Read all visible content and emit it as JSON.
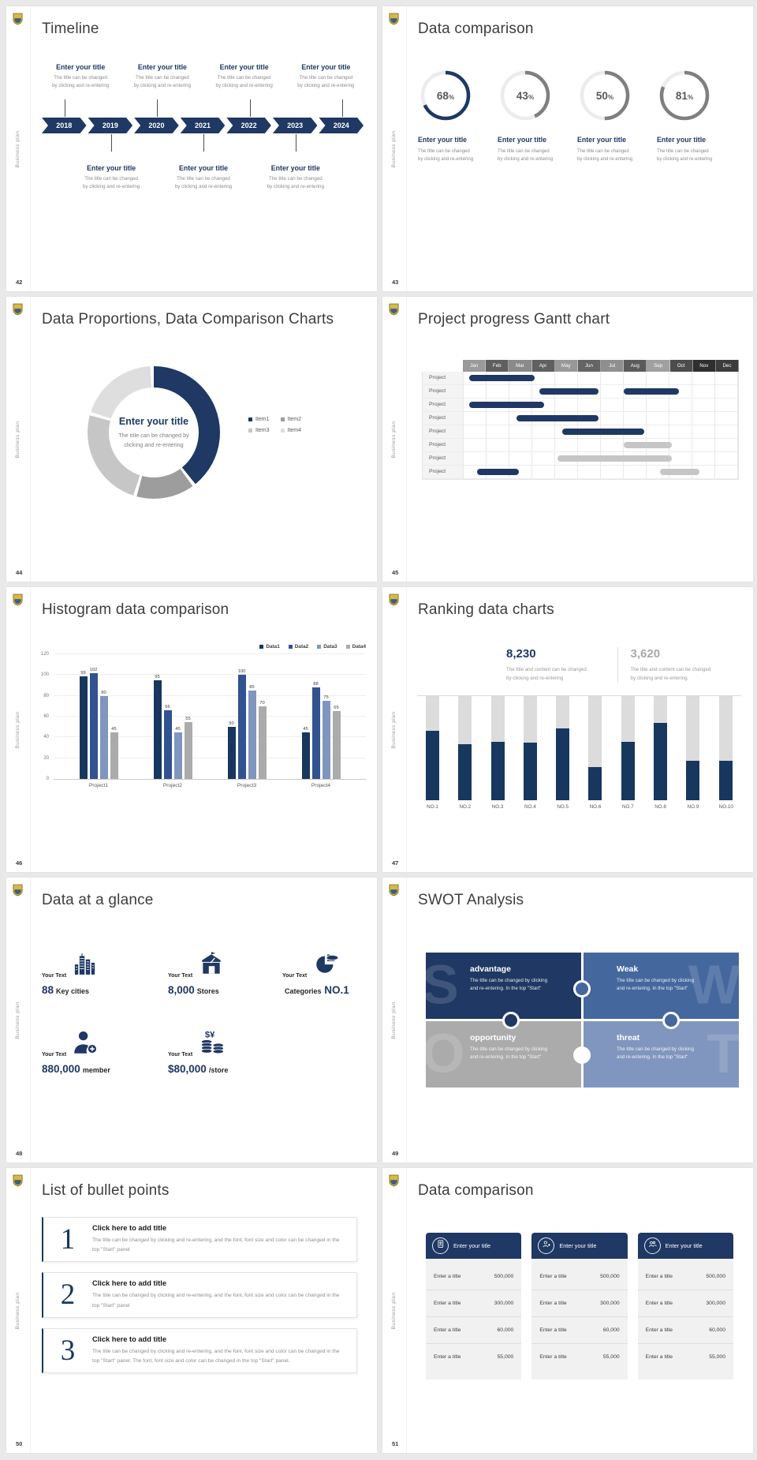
{
  "common": {
    "side_label": "Business plan",
    "accent": "#1f3864"
  },
  "s42": {
    "number": "42",
    "title": "Timeline",
    "years": [
      "2018",
      "2019",
      "2020",
      "2021",
      "2022",
      "2023",
      "2024"
    ],
    "top": [
      {
        "t": "Enter your title",
        "c1": "The title can be changed",
        "c2": "by clicking and re-entering"
      },
      {
        "t": "Enter your title",
        "c1": "The title can be changed",
        "c2": "by clicking and re-entering"
      },
      {
        "t": "Enter your title",
        "c1": "The title can be changed",
        "c2": "by clicking and re-entering"
      },
      {
        "t": "Enter your title",
        "c1": "The title can be changed",
        "c2": "by clicking and re-entering"
      }
    ],
    "bottom": [
      {
        "t": "Enter your title",
        "c1": "The title can be changed",
        "c2": "by clicking and re-entering"
      },
      {
        "t": "Enter your title",
        "c1": "The title can be changed",
        "c2": "by clicking and re-entering"
      },
      {
        "t": "Enter your title",
        "c1": "The title can be changed",
        "c2": "by clicking and re-entering"
      }
    ]
  },
  "s43": {
    "number": "43",
    "title": "Data comparison",
    "items": [
      {
        "pct": "68",
        "unit": "%",
        "color": "#1f3864",
        "t": "Enter your title",
        "c1": "The title can be changed",
        "c2": "by clicking and re-entering"
      },
      {
        "pct": "43",
        "unit": "%",
        "color": "#7f7f7f",
        "t": "Enter your title",
        "c1": "The title can be changed",
        "c2": "by clicking and re-entering"
      },
      {
        "pct": "50",
        "unit": "%",
        "color": "#7f7f7f",
        "t": "Enter your title",
        "c1": "The title can be changed",
        "c2": "by clicking and re-entering"
      },
      {
        "pct": "81",
        "unit": "%",
        "color": "#7f7f7f",
        "t": "Enter your title",
        "c1": "The title can be changed",
        "c2": "by clicking and re-entering"
      }
    ]
  },
  "s44": {
    "number": "44",
    "title": "Data Proportions, Data Comparison Charts",
    "center_title": "Enter your title",
    "center_c1": "The title can be changed by",
    "center_c2": "clicking and re-entering",
    "segments": [
      {
        "label": "Item1",
        "value": 40,
        "color": "#1f3864"
      },
      {
        "label": "Item2",
        "value": 15,
        "color": "#9d9d9d"
      },
      {
        "label": "Item3",
        "value": 25,
        "color": "#c6c6c6"
      },
      {
        "label": "Item4",
        "value": 20,
        "color": "#dedede"
      }
    ]
  },
  "s45": {
    "number": "45",
    "title": "Project progress Gantt chart",
    "row_label": "Project",
    "row_count": 8,
    "months": [
      {
        "label": "Jan",
        "color": "#9a9a9a"
      },
      {
        "label": "Feb",
        "color": "#5f5f5f"
      },
      {
        "label": "Mar",
        "color": "#8a8a8a"
      },
      {
        "label": "Apr",
        "color": "#606060"
      },
      {
        "label": "May",
        "color": "#989898"
      },
      {
        "label": "Jun",
        "color": "#646464"
      },
      {
        "label": "Jul",
        "color": "#8f8f8f"
      },
      {
        "label": "Aug",
        "color": "#5b5b5b"
      },
      {
        "label": "Sep",
        "color": "#a0a0a0"
      },
      {
        "label": "Oct",
        "color": "#4c4c4c"
      },
      {
        "label": "Nov",
        "color": "#2f2f2f"
      },
      {
        "label": "Dec",
        "color": "#3c3c3c"
      }
    ],
    "bar_colors": {
      "navy": "#1f3864",
      "gray": "#c6c6c6"
    },
    "bars": [
      {
        "row": 0,
        "start": 0.25,
        "end": 3.1,
        "color": "navy"
      },
      {
        "row": 1,
        "start": 3.3,
        "end": 5.9,
        "color": "navy"
      },
      {
        "row": 1,
        "start": 7.0,
        "end": 9.4,
        "color": "navy"
      },
      {
        "row": 2,
        "start": 0.25,
        "end": 3.5,
        "color": "navy"
      },
      {
        "row": 3,
        "start": 2.3,
        "end": 5.9,
        "color": "navy"
      },
      {
        "row": 4,
        "start": 4.3,
        "end": 7.9,
        "color": "navy"
      },
      {
        "row": 5,
        "start": 7.0,
        "end": 9.1,
        "color": "gray"
      },
      {
        "row": 6,
        "start": 4.1,
        "end": 9.1,
        "color": "gray"
      },
      {
        "row": 7,
        "start": 0.6,
        "end": 2.4,
        "color": "navy"
      },
      {
        "row": 7,
        "start": 8.6,
        "end": 10.3,
        "color": "gray"
      }
    ]
  },
  "s46": {
    "number": "46",
    "title": "Histogram data comparison",
    "legend": [
      "Data1",
      "Data2",
      "Data3",
      "Data4"
    ],
    "colors": [
      "#17375e",
      "#31538f",
      "#8096be",
      "#ababab"
    ],
    "ymax": 120,
    "yticks": [
      "0",
      "20",
      "40",
      "60",
      "80",
      "100",
      "120"
    ],
    "groups": [
      {
        "label": "Project1",
        "values": [
          99,
          102,
          80,
          45
        ]
      },
      {
        "label": "Project2",
        "values": [
          95,
          66,
          45,
          55
        ]
      },
      {
        "label": "Project3",
        "values": [
          50,
          100,
          85,
          70
        ]
      },
      {
        "label": "Project4",
        "values": [
          45,
          88,
          75,
          65
        ]
      }
    ]
  },
  "s47": {
    "number": "47",
    "title": "Ranking data charts",
    "left": {
      "value": "8,230",
      "c1": "The title and content can be changed",
      "c2": "by clicking and re-entering"
    },
    "right": {
      "value": "3,620",
      "c1": "The title and content can be changed",
      "c2": "by clicking and re-entering"
    },
    "bars": [
      {
        "label": "NO.1",
        "fill": 0.67
      },
      {
        "label": "NO.2",
        "fill": 0.54
      },
      {
        "label": "NO.3",
        "fill": 0.56
      },
      {
        "label": "NO.4",
        "fill": 0.55
      },
      {
        "label": "NO.5",
        "fill": 0.69
      },
      {
        "label": "NO.6",
        "fill": 0.32
      },
      {
        "label": "NO.7",
        "fill": 0.56
      },
      {
        "label": "NO.8",
        "fill": 0.74
      },
      {
        "label": "NO.9",
        "fill": 0.38
      },
      {
        "label": "NO.10",
        "fill": 0.38
      }
    ]
  },
  "s48": {
    "number": "48",
    "title": "Data at a glance",
    "items": [
      {
        "label": "Your Text",
        "icon": "city-icon",
        "big": "88",
        "small": "Key cities",
        "big_last": false
      },
      {
        "label": "Your Text",
        "icon": "store-icon",
        "big": "8,000",
        "small": "Stores",
        "big_last": false
      },
      {
        "label": "Your Text",
        "icon": "pie-icon",
        "big": "NO.1",
        "small": "Categories",
        "big_last": true
      },
      {
        "label": "Your Text",
        "icon": "member-icon",
        "big": "880,000",
        "small": "member",
        "big_last": false
      },
      {
        "label": "Your Text",
        "icon": "coins-icon",
        "big": "$80,000",
        "small": "/store",
        "big_last": false
      }
    ]
  },
  "s49": {
    "number": "49",
    "title": "SWOT Analysis",
    "pieces": [
      {
        "letter": "S",
        "title": "advantage",
        "c1": "The title can be changed by clicking",
        "c2": "and re-entering. In the top \"Start\"",
        "color": "#1f3864",
        "side": "left"
      },
      {
        "letter": "W",
        "title": "Weak",
        "c1": "The title can be changed by clicking",
        "c2": "and re-entering. In the top \"Start\"",
        "color": "#44679e",
        "side": "right"
      },
      {
        "letter": "O",
        "title": "opportunity",
        "c1": "The title can be changed by clicking",
        "c2": "and re-entering. In the top \"Start\"",
        "color": "#ababab",
        "side": "left"
      },
      {
        "letter": "T",
        "title": "threat",
        "c1": "The title can be changed by clicking",
        "c2": "and re-entering. In the top \"Start\"",
        "color": "#8096be",
        "side": "right"
      }
    ]
  },
  "s50": {
    "number": "50",
    "title": "List of bullet points",
    "items": [
      {
        "num": "1",
        "title": "Click here to add title",
        "body": "The title can be changed by clicking and re-entering, and the font, font size and color can be changed in the top \"Start\" panel"
      },
      {
        "num": "2",
        "title": "Click here to add title",
        "body": "The title can be changed by clicking and re-entering, and the font, font size and color can be changed in the top \"Start\" panel"
      },
      {
        "num": "3",
        "title": "Click here to add title",
        "body": "The title can be changed by clicking and re-entering, and the font, font size and color can be changed in the top \"Start\" panel. The font, font size and color can be changed in the top \"Start\" panel."
      }
    ]
  },
  "s51": {
    "number": "51",
    "title": "Data comparison",
    "cards": [
      {
        "title": "Enter your title",
        "icon": "id-card-icon"
      },
      {
        "title": "Enter your title",
        "icon": "person-add-icon"
      },
      {
        "title": "Enter your title",
        "icon": "group-icon"
      }
    ],
    "rows": [
      {
        "label": "Enter a title",
        "value": "500,000"
      },
      {
        "label": "Enter a title",
        "value": "300,000"
      },
      {
        "label": "Enter a title",
        "value": "60,000"
      },
      {
        "label": "Enter a title",
        "value": "55,000"
      }
    ]
  },
  "chart_data": [
    {
      "type": "pie",
      "subtype": "gauge-rings",
      "title": "Data comparison",
      "labels": [
        "ring1",
        "ring2",
        "ring3",
        "ring4"
      ],
      "values": [
        68,
        43,
        50,
        81
      ],
      "unit": "%"
    },
    {
      "type": "pie",
      "subtype": "donut",
      "title": "Data Proportions, Data Comparison Charts",
      "labels": [
        "Item1",
        "Item2",
        "Item3",
        "Item4"
      ],
      "values": [
        40,
        15,
        25,
        20
      ],
      "note": "values estimated from arc angles",
      "legend_position": "right"
    },
    {
      "type": "table",
      "subtype": "gantt",
      "title": "Project progress Gantt chart",
      "x_categories": [
        "Jan",
        "Feb",
        "Mar",
        "Apr",
        "May",
        "Jun",
        "Jul",
        "Aug",
        "Sep",
        "Oct",
        "Nov",
        "Dec"
      ],
      "rows": [
        {
          "label": "Project",
          "bars": [
            [
              0.25,
              3.1
            ]
          ]
        },
        {
          "label": "Project",
          "bars": [
            [
              3.3,
              5.9
            ],
            [
              7.0,
              9.4
            ]
          ]
        },
        {
          "label": "Project",
          "bars": [
            [
              0.25,
              3.5
            ]
          ]
        },
        {
          "label": "Project",
          "bars": [
            [
              2.3,
              5.9
            ]
          ]
        },
        {
          "label": "Project",
          "bars": [
            [
              4.3,
              7.9
            ]
          ]
        },
        {
          "label": "Project",
          "bars": [
            [
              7.0,
              9.1
            ]
          ]
        },
        {
          "label": "Project",
          "bars": [
            [
              4.1,
              9.1
            ]
          ]
        },
        {
          "label": "Project",
          "bars": [
            [
              0.6,
              2.4
            ],
            [
              8.6,
              10.3
            ]
          ]
        }
      ]
    },
    {
      "type": "bar",
      "title": "Histogram data comparison",
      "categories": [
        "Project1",
        "Project2",
        "Project3",
        "Project4"
      ],
      "series": [
        {
          "name": "Data1",
          "values": [
            99,
            95,
            50,
            45
          ]
        },
        {
          "name": "Data2",
          "values": [
            102,
            66,
            100,
            88
          ]
        },
        {
          "name": "Data3",
          "values": [
            80,
            45,
            85,
            75
          ]
        },
        {
          "name": "Data4",
          "values": [
            45,
            55,
            70,
            65
          ]
        }
      ],
      "ylim": [
        0,
        120
      ],
      "grid": true,
      "legend_position": "top-right"
    },
    {
      "type": "bar",
      "subtype": "ranking",
      "title": "Ranking data charts",
      "categories": [
        "NO.1",
        "NO.2",
        "NO.3",
        "NO.4",
        "NO.5",
        "NO.6",
        "NO.7",
        "NO.8",
        "NO.9",
        "NO.10"
      ],
      "values_fraction_of_max": [
        0.67,
        0.54,
        0.56,
        0.55,
        0.69,
        0.32,
        0.56,
        0.74,
        0.38,
        0.38
      ],
      "annotations": [
        "8,230",
        "3,620"
      ]
    }
  ]
}
